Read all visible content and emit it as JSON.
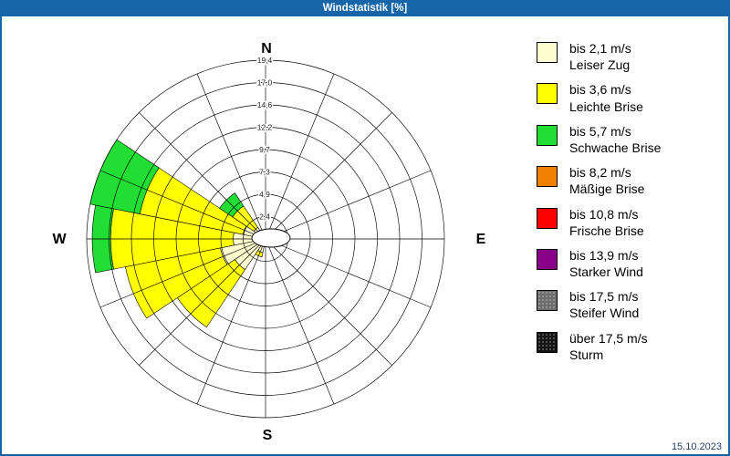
{
  "colors": {
    "title_bar": "#1565a8",
    "frame": "#1565a8",
    "date_text": "#27406b"
  },
  "window": {
    "title": "Windstatistik [%]",
    "date": "15.10.2023"
  },
  "compass": {
    "n": "N",
    "e": "E",
    "s": "S",
    "w": "W"
  },
  "legend": {
    "items": [
      {
        "speed": "bis 2,1 m/s",
        "name": "Leiser Zug",
        "color": "#ffffd2"
      },
      {
        "speed": "bis 3,6 m/s",
        "name": "Leichte Brise",
        "color": "#ffff00"
      },
      {
        "speed": "bis 5,7 m/s",
        "name": "Schwache Brise",
        "color": "#22dd33"
      },
      {
        "speed": "bis 8,2 m/s",
        "name": "Mäßige Brise",
        "color": "#f08000"
      },
      {
        "speed": "bis 10,8 m/s",
        "name": "Frische Brise",
        "color": "#ff0000"
      },
      {
        "speed": "bis 13,9 m/s",
        "name": "Starker Wind",
        "color": "#880088"
      },
      {
        "speed": "bis 17,5 m/s",
        "name": "Steifer Wind",
        "color": "#6e6e6e"
      },
      {
        "speed": "über 17,5 m/s",
        "name": "Sturm",
        "color": "#141414"
      }
    ]
  },
  "chart_data": {
    "type": "bar",
    "subtype": "wind-rose-polar-stacked",
    "title": "Windstatistik [%]",
    "units": "%",
    "radial_ticks": [
      "2,4",
      "4,9",
      "7,3",
      "9,7",
      "12,2",
      "14,6",
      "17,0",
      "19,4"
    ],
    "radial_max": 19.4,
    "grid": {
      "rings": 8,
      "spokes": 16,
      "sector_width_deg": 22.5
    },
    "directions": [
      "N",
      "NNE",
      "NE",
      "ENE",
      "E",
      "ESE",
      "SE",
      "SSE",
      "S",
      "SSW",
      "SW",
      "WSW",
      "W",
      "WNW",
      "NW",
      "NNW"
    ],
    "series": [
      {
        "name": "bis 2,1 m/s Leiser Zug",
        "color": "#ffffd2",
        "values": [
          0.5,
          0.4,
          0.4,
          0.4,
          1.2,
          0.8,
          0.5,
          0.5,
          0.6,
          1.5,
          4.0,
          5.0,
          3.5,
          2.5,
          1.5,
          0.8
        ]
      },
      {
        "name": "bis 3,6 m/s Leichte Brise",
        "color": "#ffff00",
        "values": [
          0,
          0,
          0,
          0,
          0.8,
          0,
          0,
          0,
          0,
          0.5,
          7.5,
          10.5,
          13.3,
          11.4,
          2.8,
          0
        ]
      },
      {
        "name": "bis 5,7 m/s Schwache Brise",
        "color": "#22dd33",
        "values": [
          0,
          0,
          0,
          0,
          0,
          0,
          0,
          0,
          0,
          0,
          0,
          0,
          2.0,
          5.5,
          1.7,
          0
        ]
      },
      {
        "name": "bis 8,2 m/s Mäßige Brise",
        "color": "#f08000",
        "values": [
          0,
          0,
          0,
          0,
          0,
          0,
          0,
          0,
          0,
          0,
          0,
          0,
          0,
          0,
          0,
          0
        ]
      },
      {
        "name": "bis 10,8 m/s Frische Brise",
        "color": "#ff0000",
        "values": [
          0,
          0,
          0,
          0,
          0,
          0,
          0,
          0,
          0,
          0,
          0,
          0,
          0,
          0,
          0,
          0
        ]
      },
      {
        "name": "bis 13,9 m/s Starker Wind",
        "color": "#880088",
        "values": [
          0,
          0,
          0,
          0,
          0,
          0,
          0,
          0,
          0,
          0,
          0,
          0,
          0,
          0,
          0,
          0
        ]
      },
      {
        "name": "bis 17,5 m/s Steifer Wind",
        "color": "#6e6e6e",
        "values": [
          0,
          0,
          0,
          0,
          0,
          0,
          0,
          0,
          0,
          0,
          0,
          0,
          0,
          0,
          0,
          0
        ]
      },
      {
        "name": "über 17,5 m/s Sturm",
        "color": "#141414",
        "values": [
          0,
          0,
          0,
          0,
          0,
          0,
          0,
          0,
          0,
          0,
          0,
          0,
          0,
          0,
          0,
          0
        ]
      }
    ]
  }
}
